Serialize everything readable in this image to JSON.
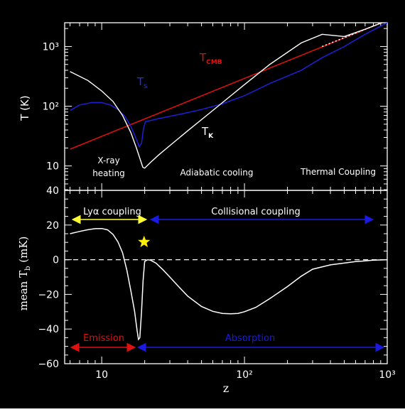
{
  "colors": {
    "background": "#000000",
    "frame": "#ffffff",
    "kinetic": "#ffffff",
    "spin": "#1f1fd6",
    "cmb": "#e01010",
    "lya": "#ffff33",
    "collisional": "#1a1ae0",
    "emission": "#e01010",
    "absorption": "#1a1ae0",
    "star": "#ffee00"
  },
  "chart_data": [
    {
      "type": "line",
      "scale": "log-log",
      "ylabel": "T (K)",
      "xlim": [
        5.5,
        1000
      ],
      "ylim": [
        3.9,
        2500
      ],
      "yticks": [
        {
          "value": 10,
          "label": "10"
        },
        {
          "value": 100,
          "label": "10²"
        },
        {
          "value": 1000,
          "label": "10³"
        }
      ],
      "series": [
        {
          "name": "T_CMB",
          "key": "cmb",
          "x": [
            6,
            1000
          ],
          "y": [
            19.1,
            2728
          ]
        },
        {
          "name": "T_s",
          "key": "spin",
          "x": [
            6,
            7,
            8.5,
            10,
            11.5,
            13,
            14.5,
            16,
            17.5,
            18.3,
            19,
            19.6,
            20.2,
            25,
            35,
            50,
            70,
            100,
            150,
            250,
            350,
            500,
            700,
            1000
          ],
          "y": [
            85,
            105,
            115,
            115,
            105,
            88,
            68,
            46,
            28,
            21,
            24,
            42,
            55,
            62,
            73,
            88,
            110,
            150,
            240,
            400,
            650,
            1000,
            1600,
            2500
          ]
        },
        {
          "name": "T_K",
          "key": "kinetic",
          "x": [
            6,
            8,
            10,
            12,
            14,
            16,
            17.5,
            18.8,
            19.4,
            20,
            22,
            25,
            30,
            40,
            60,
            80,
            100,
            150,
            250,
            350,
            500,
            700,
            1000
          ],
          "y": [
            380,
            270,
            180,
            120,
            70,
            36,
            20,
            12,
            9.5,
            9.2,
            11.5,
            15.2,
            21.9,
            38.7,
            85,
            149,
            230,
            500,
            1150,
            1600,
            1470,
            1950,
            2700
          ]
        }
      ],
      "labels": {
        "t_cmb_main": "T",
        "t_cmb_sub": "CMB",
        "t_s_main": "T",
        "t_s_sub": "s",
        "t_k_main": "T",
        "t_k_sub": "K",
        "region_xray_line1": "X-ray",
        "region_xray_line2": "heating",
        "region_adiabatic": "Adiabatic cooling",
        "region_thermal": "Thermal Coupling"
      }
    },
    {
      "type": "line",
      "scale": "log-x",
      "xlabel": "z",
      "ylabel_main": "mean T",
      "ylabel_sub": "b",
      "ylabel_unit": " (mK)",
      "xlim": [
        5.5,
        1000
      ],
      "ylim": [
        -60,
        40
      ],
      "yticks": [
        {
          "value": 40,
          "label": "40"
        },
        {
          "value": 20,
          "label": "20"
        },
        {
          "value": 0,
          "label": "0"
        },
        {
          "value": -20,
          "label": "−20"
        },
        {
          "value": -40,
          "label": "−40"
        },
        {
          "value": -60,
          "label": "−60"
        }
      ],
      "xticks": [
        {
          "value": 10,
          "label": "10"
        },
        {
          "value": 100,
          "label": "10²"
        },
        {
          "value": 1000,
          "label": "10³"
        }
      ],
      "series": [
        {
          "name": "mean Tb",
          "x": [
            6,
            7,
            8,
            9,
            10,
            11,
            12,
            13,
            14,
            15,
            16,
            17,
            17.7,
            18.1,
            18.5,
            19,
            19.5,
            20,
            21,
            22,
            24,
            27,
            30,
            35,
            40,
            50,
            60,
            70,
            80,
            90,
            100,
            120,
            150,
            200,
            250,
            300,
            400,
            600,
            800,
            1000
          ],
          "y": [
            15,
            16.3,
            17.3,
            17.9,
            18,
            17.2,
            14.6,
            10.2,
            4,
            -6,
            -18,
            -30,
            -41,
            -46,
            -45,
            -30,
            -12,
            -1,
            0,
            -0.3,
            -2,
            -6,
            -10,
            -16,
            -21,
            -27,
            -29.8,
            -31,
            -31.2,
            -31,
            -30,
            -27.5,
            -22.5,
            -15.5,
            -9.5,
            -5.5,
            -3,
            -1.1,
            -0.3,
            0
          ]
        }
      ],
      "annotations": {
        "lya_coupling": "Lyα coupling",
        "collisional_coupling": "Collisional coupling",
        "emission": "Emission",
        "absorption": "Absorption"
      }
    }
  ]
}
